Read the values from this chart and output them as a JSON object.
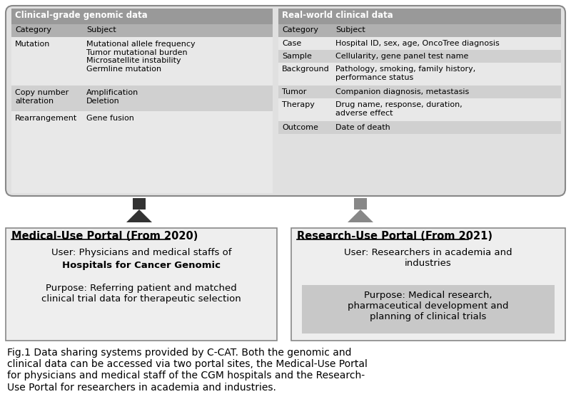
{
  "title": "Fig.1 Data sharing systems provided by C-CAT. Both the genomic and\nclinical data can be accessed via two portal sites, the Medical-Use Portal\nfor physicians and medical staff of the CGM hospitals and the Research-\nUse Portal for researchers in academia and industries.",
  "genomic_header": "Clinical-grade genomic data",
  "genomic_col1": "Category",
  "genomic_col2": "Subject",
  "genomic_rows": [
    [
      "Mutation",
      "Mutational allele frequency\nTumor mutational burden\nMicrosatellite instability\nGermline mutation"
    ],
    [
      "Copy number\nalteration",
      "Amplification\nDeletion"
    ],
    [
      "Rearrangement",
      "Gene fusion"
    ]
  ],
  "clinical_header": "Real-world clinical data",
  "clinical_col1": "Category",
  "clinical_col2": "Subject",
  "clinical_rows": [
    [
      "Case",
      "Hospital ID, sex, age, OncoTree diagnosis"
    ],
    [
      "Sample",
      "Cellularity, gene panel test name"
    ],
    [
      "Background",
      "Pathology, smoking, family history,\nperformance status"
    ],
    [
      "Tumor",
      "Companion diagnosis, metastasis"
    ],
    [
      "Therapy",
      "Drug name, response, duration,\nadverse effect"
    ],
    [
      "Outcome",
      "Date of death"
    ]
  ],
  "medical_title": "Medical-Use Portal (From 2020)",
  "medical_user_line1": "User: Physicians and medical staffs of",
  "medical_user_line2": "Hospitals for Cancer Genomic",
  "medical_purpose": "Purpose: Referring patient and matched\nclinical trial data for therapeutic selection",
  "research_title": "Research-Use Portal (From 2021)",
  "research_user": "User: Researchers in academia and\nindustries",
  "research_purpose": "Purpose: Medical research,\npharmaceutical development and\nplanning of clinical trials",
  "header_bg": "#999999",
  "subheader_bg": "#b0b0b0",
  "row_bg_odd": "#e8e8e8",
  "row_bg_even": "#d0d0d0",
  "outer_bg": "#e0e0e0",
  "portal_bg": "#eeeeee",
  "arrow_black": "#333333",
  "arrow_gray": "#888888",
  "border_color": "#888888",
  "purpose_bg": "#c8c8c8"
}
